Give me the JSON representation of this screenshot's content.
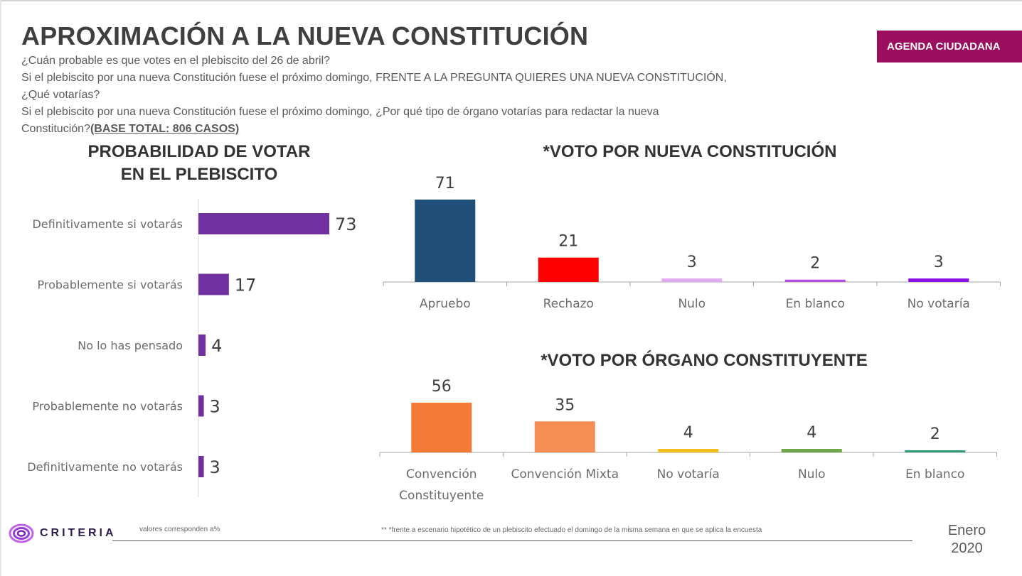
{
  "header": {
    "title": "APROXIMACIÓN A LA NUEVA CONSTITUCIÓN",
    "badge": "AGENDA CIUDADANA",
    "questions": [
      "¿Cuán probable es que votes en el plebiscito del 26 de abril?",
      "Si el plebiscito por una nueva Constitución fuese el próximo domingo, FRENTE A LA PREGUNTA QUIERES UNA NUEVA CONSTITUCIÓN,",
      "¿Qué votarías?",
      "Si el plebiscito por una nueva Constitución fuese el próximo domingo, ¿Por qué tipo de órgano votarías para redactar la nueva",
      "Constitución?"
    ],
    "base": "(BASE TOTAL:  806 CASOS)"
  },
  "chart_titles": {
    "left_line1": "PROBABILIDAD DE VOTAR",
    "left_line2": "EN EL PLEBISCITO",
    "top_right": "*VOTO POR NUEVA CONSTITUCIÓN",
    "bottom_right": "*VOTO POR ÓRGANO CONSTITUYENTE"
  },
  "chart_data": [
    {
      "type": "bar",
      "orientation": "horizontal",
      "title": "PROBABILIDAD DE VOTAR EN EL PLEBISCITO",
      "categories": [
        "Definitivamente si votarás",
        "Probablemente si votarás",
        "No lo has pensado",
        "Probablemente no votarás",
        "Definitivamente no votarás"
      ],
      "values": [
        73,
        17,
        4,
        3,
        3
      ],
      "colors": [
        "#7030a0",
        "#7030a0",
        "#7030a0",
        "#7030a0",
        "#7030a0"
      ],
      "xlabel": "",
      "ylabel": "",
      "xlim": [
        0,
        73
      ],
      "grid": false,
      "data_labels": true
    },
    {
      "type": "bar",
      "orientation": "vertical",
      "title": "*VOTO POR NUEVA CONSTITUCIÓN",
      "categories": [
        "Apruebo",
        "Rechazo",
        "Nulo",
        "En blanco",
        "No votaría"
      ],
      "values": [
        71,
        21,
        3,
        2,
        3
      ],
      "colors": [
        "#1f4e79",
        "#ff0000",
        "#e0aaf0",
        "#b44ee0",
        "#8b10e8"
      ],
      "xlabel": "",
      "ylabel": "",
      "ylim": [
        0,
        71
      ],
      "grid": false,
      "data_labels": true
    },
    {
      "type": "bar",
      "orientation": "vertical",
      "title": "*VOTO POR ÓRGANO CONSTITUYENTE",
      "categories": [
        [
          "Convención",
          "Constituyente"
        ],
        [
          "Convención Mixta"
        ],
        [
          "No votaría"
        ],
        [
          "Nulo"
        ],
        [
          "En blanco"
        ]
      ],
      "values": [
        56,
        35,
        4,
        4,
        2
      ],
      "colors": [
        "#f47b35",
        "#f58d55",
        "#f2c01a",
        "#6ea84a",
        "#2e9a78"
      ],
      "xlabel": "",
      "ylabel": "",
      "ylim": [
        0,
        56
      ],
      "grid": false,
      "data_labels": true
    }
  ],
  "footer": {
    "logo_text": "CRITERIA",
    "note_left": "valores corresponden a%",
    "note_right": "** *frente a escenario hipotético de un plebiscito efectuado el domingo de la misma semana en que se aplica la encuesta",
    "date_month": "Enero",
    "date_year": "2020"
  }
}
